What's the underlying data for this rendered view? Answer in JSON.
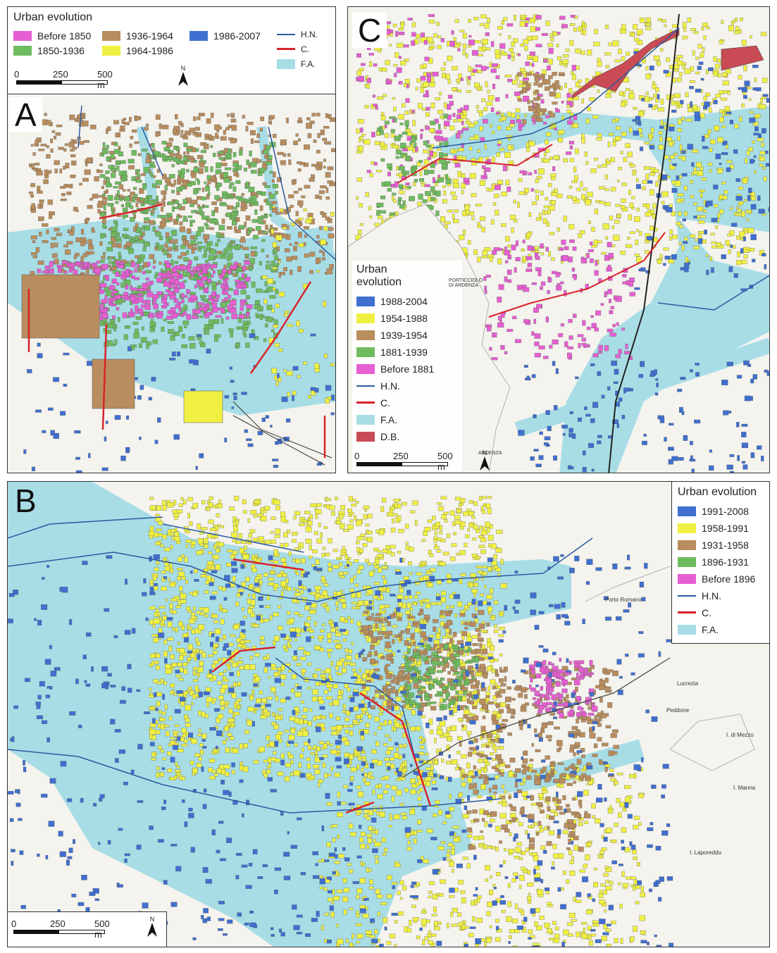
{
  "colors": {
    "pink": "#e65fd2",
    "green": "#6fbb5f",
    "brown": "#b98d5e",
    "blue": "#3f6fcf",
    "yellow": "#f0f043",
    "red": "#d8232a",
    "flood": "#a8dde6",
    "hydro": "#2c5aa0",
    "dam": "#c94b55"
  },
  "panel_a": {
    "letter": "A",
    "legend": {
      "title": "Urban evolution",
      "items": [
        {
          "label": "Before 1850",
          "color": "#e65fd2"
        },
        {
          "label": "1850-1936",
          "color": "#6fbb5f"
        },
        {
          "label": "1936-1964",
          "color": "#b98d5e"
        },
        {
          "label": "1964-1986",
          "color": "#f0f043"
        },
        {
          "label": "1986-2007",
          "color": "#3f6fcf"
        }
      ],
      "lines": [
        {
          "label": "H.N.",
          "color": "#2c5aa0"
        },
        {
          "label": "C.",
          "color": "#d8232a"
        },
        {
          "label": "F.A.",
          "color": "#a8dde6"
        }
      ]
    },
    "scale": {
      "labels": [
        "0",
        "250",
        "500 m"
      ]
    },
    "north": "N"
  },
  "panel_b": {
    "letter": "B",
    "legend": {
      "title": "Urban evolution",
      "items": [
        {
          "label": "1991-2008",
          "color": "#3f6fcf"
        },
        {
          "label": "1958-1991",
          "color": "#f0f043"
        },
        {
          "label": "1931-1958",
          "color": "#b98d5e"
        },
        {
          "label": "1896-1931",
          "color": "#6fbb5f"
        },
        {
          "label": "Before 1896",
          "color": "#e65fd2"
        }
      ],
      "lines": [
        {
          "label": "H.N.",
          "color": "#2c5aa0"
        },
        {
          "label": "C.",
          "color": "#d8232a"
        },
        {
          "label": "F.A.",
          "color": "#a8dde6"
        }
      ]
    },
    "scale": {
      "labels": [
        "0",
        "250",
        "500 m"
      ]
    },
    "north": "N",
    "map_labels": [
      "Porto Romano",
      "Lucrezia",
      "Peddone",
      "I. di Mezzo",
      "I. Manna",
      "I. Laporeddu"
    ]
  },
  "panel_c": {
    "letter": "C",
    "legend": {
      "title_line1": "Urban",
      "title_line2": "evolution",
      "items": [
        {
          "label": "1988-2004",
          "color": "#3f6fcf"
        },
        {
          "label": "1954-1988",
          "color": "#f0f043"
        },
        {
          "label": "1939-1954",
          "color": "#b98d5e"
        },
        {
          "label": "1881-1939",
          "color": "#6fbb5f"
        },
        {
          "label": "Before 1881",
          "color": "#e65fd2"
        }
      ],
      "lines": [
        {
          "label": "H.N.",
          "color": "#2c5aa0"
        },
        {
          "label": "C.",
          "color": "#d8232a"
        },
        {
          "label": "F.A.",
          "color": "#a8dde6"
        },
        {
          "label": "D.B.",
          "color": "#c94b55"
        }
      ]
    },
    "scale": {
      "labels": [
        "0",
        "250",
        "500 m"
      ]
    },
    "north": "N",
    "map_labels": [
      "PORTICCIOLO DI ARDENZA",
      "ARDENZA"
    ]
  }
}
